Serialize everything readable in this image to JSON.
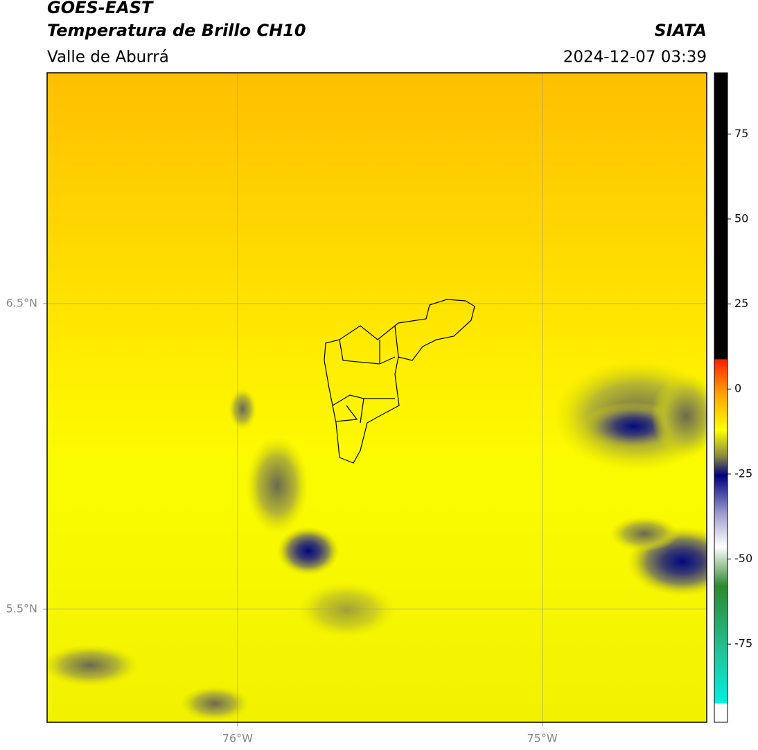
{
  "header": {
    "title": "GOES-EAST",
    "subtitle": "Temperatura de Brillo CH10",
    "region": "Valle de Aburrá",
    "source": "SIATA",
    "datetime": "2024-12-07 03:39"
  },
  "map": {
    "xlim": [
      -76.625,
      -74.46
    ],
    "ylim": [
      5.13,
      7.255
    ],
    "xticks": [
      {
        "value": -76,
        "label": "76°W"
      },
      {
        "value": -75,
        "label": "75°W"
      }
    ],
    "yticks": [
      {
        "value": 6.5,
        "label": "6.5°N"
      },
      {
        "value": 5.5,
        "label": "5.5°N"
      }
    ],
    "grid": true
  },
  "colorbar": {
    "lim": [
      -98,
      93
    ],
    "ticks": [
      75,
      50,
      25,
      0,
      -25,
      -50,
      -75
    ]
  }
}
